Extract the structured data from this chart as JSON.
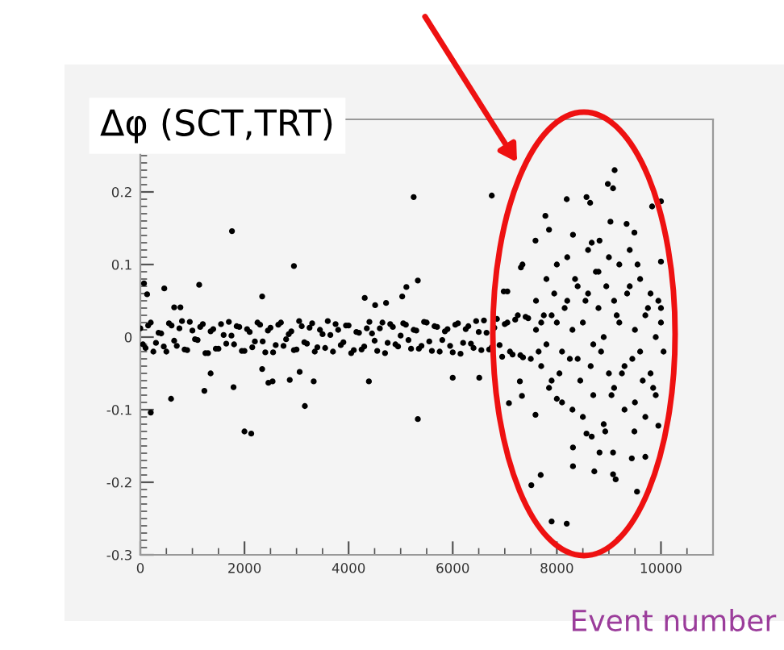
{
  "chart_data": {
    "type": "scatter",
    "ylabel": "Δφ (SCT,TRT)",
    "xlabel": "Event number",
    "xlim": [
      0,
      11000
    ],
    "ylim": [
      -0.3,
      0.3
    ],
    "xticks": [
      0,
      2000,
      4000,
      6000,
      8000,
      10000
    ],
    "yticks": [
      -0.3,
      -0.2,
      -0.1,
      0,
      0.1,
      0.2
    ],
    "marker": "circle",
    "grid": false,
    "legend": false,
    "series": [
      {
        "color": "#000000",
        "x": [
          0,
          100,
          200,
          300,
          400,
          500,
          600,
          700,
          800,
          900,
          1000,
          1100,
          1200,
          1300,
          1400,
          1500,
          1600,
          1700,
          1800,
          1900,
          2000,
          2100,
          2200,
          2300,
          2400,
          2500,
          2600,
          2700,
          2800,
          2900,
          3000,
          3100,
          3200,
          3300,
          3400,
          3500,
          3600,
          3700,
          3800,
          3900,
          4000,
          4100,
          4200,
          4300,
          4400,
          4500,
          4600,
          4700,
          4800,
          4900,
          5000,
          5100,
          5200,
          5300,
          5400,
          5500,
          5600,
          5700,
          5800,
          5900,
          6000,
          6100,
          6200,
          6300,
          6400,
          6500,
          6600,
          6700,
          6800,
          6900,
          7000,
          7100,
          7200,
          7300,
          7400,
          7500,
          50,
          150,
          250,
          350,
          450,
          550,
          650,
          750,
          850,
          950,
          1050,
          1150,
          1250,
          1350,
          1450,
          1550,
          1650,
          1750,
          1850,
          1950,
          2050,
          2150,
          2250,
          2350,
          2450,
          2550,
          2650,
          2750,
          2850,
          2950,
          3050,
          3150,
          3250,
          3350,
          3450,
          3550,
          3650,
          3750,
          3850,
          3950,
          4050,
          4150,
          4250,
          4350,
          4450,
          4550,
          4650,
          4750,
          4850,
          4950,
          5050,
          5150,
          5250,
          5350,
          5450,
          5550,
          5650,
          5750,
          5850,
          5950,
          6050,
          6150,
          6250,
          6350,
          6450,
          6550,
          6650,
          6750,
          6850,
          6950,
          7050,
          7150,
          7250,
          7350,
          7450,
          70,
          130,
          200,
          460,
          590,
          650,
          770,
          1130,
          1230,
          1350,
          1760,
          1790,
          2000,
          2130,
          2340,
          2340,
          2460,
          2540,
          2870,
          2950,
          3060,
          3160,
          3330,
          4310,
          4390,
          4510,
          4720,
          5030,
          5110,
          5250,
          5330,
          5330,
          6000,
          6510,
          6750,
          7080,
          7330,
          7310,
          7050,
          9110,
          8980,
          9080,
          8190,
          8570,
          8640,
          10000,
          9830,
          7780,
          7850,
          9030,
          9340,
          9490,
          7590,
          8310,
          8670,
          8820,
          7340,
          10000,
          6980,
          7290,
          7590,
          8000,
          8310,
          8310,
          8670,
          8720,
          8820,
          9080,
          9080,
          9130,
          9440,
          9700,
          9540,
          7690,
          7510,
          7900,
          8190,
          9490,
          9950,
          8570,
          8930,
          7600,
          7700,
          7800,
          7900,
          8000,
          8100,
          8200,
          8300,
          8400,
          8500,
          8600,
          8700,
          8800,
          8900,
          9000,
          9100,
          9200,
          9300,
          9400,
          9500,
          9600,
          9700,
          9800,
          9900,
          10000,
          7650,
          7750,
          7850,
          7950,
          8050,
          8150,
          8250,
          8350,
          8450,
          8550,
          8650,
          8750,
          8850,
          8950,
          9050,
          9150,
          9250,
          9350,
          9450,
          9550,
          9650,
          9750,
          9850,
          9950,
          10050,
          7600,
          7700,
          7800,
          7900,
          8000,
          8100,
          8200,
          8300,
          8400,
          8500,
          8600,
          8700,
          8800,
          8900,
          9000,
          9100,
          9200,
          9300,
          9400,
          9500,
          9600,
          9700,
          9800,
          9900,
          10000
        ],
        "values": [
          0.012,
          -0.015,
          0.02,
          -0.008,
          0.005,
          -0.02,
          0.016,
          -0.012,
          0.022,
          -0.018,
          0.009,
          -0.004,
          0.018,
          -0.022,
          0.011,
          -0.016,
          0.003,
          0.021,
          -0.01,
          0.014,
          -0.019,
          0.007,
          -0.006,
          0.017,
          -0.021,
          0.013,
          -0.011,
          0.02,
          -0.003,
          0.008,
          -0.017,
          0.015,
          -0.009,
          0.019,
          -0.014,
          0.004,
          0.022,
          -0.02,
          0.01,
          -0.007,
          0.016,
          -0.018,
          0.006,
          -0.013,
          0.021,
          -0.005,
          0.012,
          -0.022,
          0.018,
          -0.01,
          0.002,
          0.017,
          -0.016,
          0.009,
          -0.012,
          0.02,
          -0.019,
          0.014,
          -0.004,
          0.011,
          -0.021,
          0.019,
          -0.008,
          0.015,
          -0.015,
          0.007,
          0.023,
          -0.017,
          0.013,
          -0.011,
          0.018,
          -0.02,
          0.024,
          -0.025,
          0.028,
          -0.03,
          -0.01,
          0.016,
          -0.02,
          0.006,
          -0.013,
          0.019,
          -0.005,
          0.012,
          -0.017,
          0.021,
          -0.003,
          0.014,
          -0.022,
          0.008,
          -0.016,
          0.018,
          -0.009,
          0.002,
          0.015,
          -0.019,
          0.011,
          -0.014,
          0.02,
          -0.006,
          0.009,
          -0.021,
          0.017,
          -0.012,
          0.004,
          -0.018,
          0.022,
          -0.007,
          0.013,
          -0.02,
          0.01,
          -0.015,
          0.003,
          0.018,
          -0.011,
          0.016,
          -0.022,
          0.007,
          -0.017,
          0.012,
          0.005,
          -0.019,
          0.02,
          -0.008,
          0.014,
          -0.013,
          0.019,
          -0.004,
          0.01,
          -0.016,
          0.021,
          -0.006,
          0.015,
          -0.02,
          0.008,
          -0.012,
          0.017,
          -0.023,
          0.011,
          -0.009,
          0.022,
          -0.018,
          0.006,
          -0.014,
          0.025,
          -0.027,
          0.02,
          -0.024,
          0.03,
          -0.028,
          0.026,
          0.074,
          0.059,
          -0.104,
          0.067,
          -0.085,
          0.041,
          0.041,
          0.072,
          -0.074,
          -0.05,
          0.146,
          -0.069,
          -0.13,
          -0.133,
          -0.044,
          0.056,
          -0.063,
          -0.061,
          -0.059,
          0.098,
          -0.048,
          -0.095,
          -0.061,
          0.054,
          -0.061,
          0.044,
          0.047,
          0.056,
          0.069,
          0.193,
          0.078,
          -0.113,
          -0.056,
          -0.056,
          0.195,
          -0.091,
          -0.081,
          0.096,
          0.063,
          0.23,
          0.211,
          0.205,
          0.19,
          0.193,
          0.185,
          0.187,
          0.18,
          0.167,
          0.148,
          0.159,
          0.156,
          0.144,
          0.133,
          0.141,
          0.13,
          0.133,
          0.1,
          0.104,
          0.063,
          -0.061,
          -0.107,
          -0.085,
          -0.152,
          -0.178,
          -0.137,
          -0.185,
          -0.159,
          -0.159,
          -0.189,
          -0.196,
          -0.167,
          -0.165,
          -0.213,
          -0.19,
          -0.204,
          -0.254,
          -0.257,
          -0.13,
          -0.122,
          -0.133,
          -0.13,
          0.05,
          -0.04,
          0.08,
          -0.06,
          0.1,
          -0.09,
          0.11,
          -0.1,
          0.07,
          -0.11,
          0.12,
          -0.08,
          0.09,
          -0.12,
          0.11,
          -0.07,
          0.1,
          -0.1,
          0.12,
          -0.09,
          0.08,
          -0.11,
          0.06,
          -0.08,
          0.04,
          -0.02,
          0.03,
          -0.07,
          0.06,
          -0.05,
          0.04,
          -0.03,
          0.08,
          -0.06,
          0.05,
          -0.04,
          0.09,
          -0.02,
          0.07,
          -0.08,
          0.03,
          -0.05,
          0.06,
          -0.03,
          0.1,
          -0.06,
          0.04,
          -0.07,
          0.05,
          -0.02,
          0.01,
          0.02,
          -0.01,
          0.03,
          0.02,
          -0.02,
          0.05,
          0.01,
          -0.03,
          0.02,
          0.06,
          -0.01,
          0.04,
          0.0,
          -0.05,
          0.05,
          0.02,
          -0.04,
          0.07,
          0.01,
          -0.02,
          0.03,
          -0.05,
          0.0,
          0.02
        ]
      }
    ]
  }
}
